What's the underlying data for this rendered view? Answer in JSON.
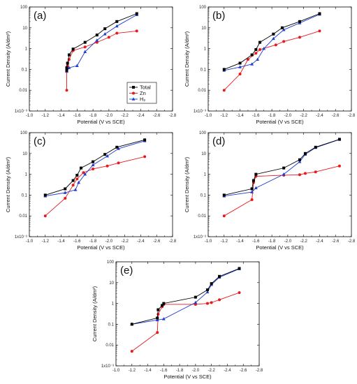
{
  "chart_data": [
    {
      "type": "line",
      "panel_label": "(a)",
      "xlabel": "Potential (V vs SCE)",
      "ylabel": "Current Density (A/dm²)",
      "xlim": [
        -1.0,
        -2.8
      ],
      "ylim": [
        0.001,
        100
      ],
      "y_scale": "log",
      "x_ticks": [
        "-1.0",
        "-1.2",
        "-1.4",
        "-1.6",
        "-1.8",
        "-2.0",
        "-2.2",
        "-2.4",
        "-2.6",
        "-2.8"
      ],
      "y_ticks": [
        "1x10⁻³",
        "0.01",
        "0.1",
        "1",
        "10",
        "100"
      ],
      "legend": {
        "placement": "center-right",
        "entries": [
          "Total",
          "Zn",
          "H₂"
        ]
      },
      "series": [
        {
          "name": "Total",
          "color": "#000000",
          "marker": "square",
          "x": [
            -1.47,
            -1.47,
            -1.48,
            -1.5,
            -1.55,
            -1.7,
            -1.85,
            -1.95,
            -2.1,
            -2.35
          ],
          "y": [
            0.09,
            0.12,
            0.2,
            0.5,
            0.95,
            2.0,
            4.5,
            9.0,
            20,
            48
          ]
        },
        {
          "name": "Zn",
          "color": "#e8191b",
          "marker": "circle",
          "x": [
            -1.47,
            -1.47,
            -1.48,
            -1.5,
            -1.55,
            -1.7,
            -1.85,
            -2.0,
            -2.1,
            -2.35
          ],
          "y": [
            0.01,
            0.08,
            0.15,
            0.3,
            0.8,
            1.2,
            2.0,
            3.5,
            5.5,
            7.0
          ]
        },
        {
          "name": "H₂",
          "color": "#1e3cd0",
          "marker": "triangle",
          "x": [
            -1.47,
            -1.5,
            -1.6,
            -1.7,
            -1.85,
            -1.95,
            -2.1,
            -2.35
          ],
          "y": [
            0.08,
            0.12,
            0.15,
            0.7,
            2.5,
            5.0,
            12,
            42
          ]
        }
      ]
    },
    {
      "type": "line",
      "panel_label": "(b)",
      "xlabel": "Potential (V vs SCE)",
      "ylabel": "Current Density (A/dm²)",
      "xlim": [
        -1.0,
        -2.8
      ],
      "ylim": [
        0.001,
        100
      ],
      "y_scale": "log",
      "x_ticks": [
        "-1.0",
        "-1.2",
        "-1.4",
        "-1.6",
        "-1.8",
        "-2.0",
        "-2.2",
        "-2.4",
        "-2.6",
        "-2.8"
      ],
      "y_ticks": [
        "1x10⁻³",
        "0.01",
        "0.1",
        "1",
        "10",
        "100"
      ],
      "series": [
        {
          "name": "Total",
          "color": "#000000",
          "marker": "square",
          "x": [
            -1.2,
            -1.4,
            -1.55,
            -1.6,
            -1.65,
            -1.82,
            -1.93,
            -2.15,
            -2.4
          ],
          "y": [
            0.1,
            0.2,
            0.5,
            0.9,
            2.0,
            5.0,
            10,
            20,
            48
          ]
        },
        {
          "name": "Zn",
          "color": "#e8191b",
          "marker": "circle",
          "x": [
            -1.2,
            -1.4,
            -1.5,
            -1.6,
            -1.65,
            -1.85,
            -1.95,
            -2.15,
            -2.4
          ],
          "y": [
            0.01,
            0.06,
            0.3,
            0.6,
            0.9,
            1.5,
            2.2,
            3.5,
            7.0
          ]
        },
        {
          "name": "H₂",
          "color": "#1e3cd0",
          "marker": "triangle",
          "x": [
            -1.2,
            -1.4,
            -1.55,
            -1.62,
            -1.7,
            -1.82,
            -1.95,
            -2.15,
            -2.4
          ],
          "y": [
            0.09,
            0.13,
            0.18,
            0.3,
            1.0,
            3.0,
            8.0,
            17,
            44
          ]
        }
      ]
    },
    {
      "type": "line",
      "panel_label": "(c)",
      "xlabel": "Potential (V vs SCE)",
      "ylabel": "Current Density (A/dm²)",
      "xlim": [
        -1.0,
        -2.8
      ],
      "ylim": [
        0.001,
        100
      ],
      "y_scale": "log",
      "x_ticks": [
        "-1.0",
        "-1.2",
        "-1.4",
        "-1.6",
        "-1.8",
        "-2.0",
        "-2.2",
        "-2.4",
        "-2.6",
        "-2.8"
      ],
      "y_ticks": [
        "1x10⁻³",
        "0.01",
        "0.1",
        "1",
        "10",
        "100"
      ],
      "series": [
        {
          "name": "Total",
          "color": "#000000",
          "marker": "square",
          "x": [
            -1.2,
            -1.45,
            -1.55,
            -1.6,
            -1.65,
            -1.8,
            -1.95,
            -2.1,
            -2.45
          ],
          "y": [
            0.1,
            0.2,
            0.5,
            0.9,
            2.0,
            4.0,
            9.0,
            20,
            45
          ]
        },
        {
          "name": "Zn",
          "color": "#e8191b",
          "marker": "circle",
          "x": [
            -1.2,
            -1.45,
            -1.55,
            -1.6,
            -1.68,
            -1.8,
            -1.98,
            -2.12,
            -2.45
          ],
          "y": [
            0.01,
            0.07,
            0.3,
            0.6,
            1.2,
            1.8,
            2.5,
            3.5,
            7.0
          ]
        },
        {
          "name": "H₂",
          "color": "#1e3cd0",
          "marker": "triangle",
          "x": [
            -1.2,
            -1.45,
            -1.58,
            -1.62,
            -1.7,
            -1.8,
            -1.98,
            -2.12,
            -2.45
          ],
          "y": [
            0.09,
            0.13,
            0.18,
            0.4,
            1.0,
            2.8,
            7.5,
            17,
            40
          ]
        }
      ]
    },
    {
      "type": "line",
      "panel_label": "(d)",
      "xlabel": "Potential (V vs SCE)",
      "ylabel": "Current Density (A/dm²)",
      "xlim": [
        -1.0,
        -2.8
      ],
      "ylim": [
        0.001,
        100
      ],
      "y_scale": "log",
      "x_ticks": [
        "-1.0",
        "-1.2",
        "-1.4",
        "-1.6",
        "-1.8",
        "-2.0",
        "-2.2",
        "-2.4",
        "-2.6",
        "-2.8"
      ],
      "y_ticks": [
        "1x10⁻³",
        "0.01",
        "0.1",
        "1",
        "10",
        "100"
      ],
      "series": [
        {
          "name": "Total",
          "color": "#000000",
          "marker": "square",
          "x": [
            -1.2,
            -1.55,
            -1.57,
            -1.6,
            -1.95,
            -2.15,
            -2.22,
            -2.35,
            -2.65
          ],
          "y": [
            0.1,
            0.2,
            0.5,
            1.0,
            2.0,
            5.0,
            10,
            20,
            48
          ]
        },
        {
          "name": "Zn",
          "color": "#e8191b",
          "marker": "circle",
          "x": [
            -1.2,
            -1.55,
            -1.57,
            -1.6,
            -1.95,
            -2.15,
            -2.22,
            -2.35,
            -2.65
          ],
          "y": [
            0.01,
            0.06,
            0.4,
            0.8,
            0.9,
            0.95,
            1.1,
            1.3,
            2.5
          ]
        },
        {
          "name": "H₂",
          "color": "#1e3cd0",
          "marker": "triangle",
          "x": [
            -1.2,
            -1.55,
            -1.6,
            -1.95,
            -2.15,
            -2.22,
            -2.35,
            -2.65
          ],
          "y": [
            0.09,
            0.14,
            0.22,
            1.0,
            4.0,
            9.0,
            19,
            47
          ]
        }
      ]
    },
    {
      "type": "line",
      "panel_label": "(e)",
      "xlabel": "Potential (V vs SCE)",
      "ylabel": "Current Density (A/dm²)",
      "xlim": [
        -1.0,
        -2.8
      ],
      "ylim": [
        0.001,
        100
      ],
      "y_scale": "log",
      "x_ticks": [
        "-1.0",
        "-1.2",
        "-1.4",
        "-1.6",
        "-1.8",
        "-2.0",
        "-2.2",
        "-2.4",
        "-2.6",
        "-2.8"
      ],
      "y_ticks": [
        "1x10⁻³",
        "0.01",
        "0.1",
        "1",
        "10",
        "100"
      ],
      "series": [
        {
          "name": "Total",
          "color": "#000000",
          "marker": "square",
          "x": [
            -1.2,
            -1.52,
            -1.53,
            -1.58,
            -1.6,
            -2.0,
            -2.15,
            -2.2,
            -2.3,
            -2.55
          ],
          "y": [
            0.1,
            0.2,
            0.5,
            0.8,
            1.0,
            2.0,
            4.5,
            9.0,
            20,
            48
          ]
        },
        {
          "name": "Zn",
          "color": "#e8191b",
          "marker": "circle",
          "x": [
            -1.2,
            -1.52,
            -1.53,
            -1.58,
            -1.6,
            -2.0,
            -2.15,
            -2.2,
            -2.3,
            -2.55
          ],
          "y": [
            0.005,
            0.04,
            0.3,
            0.7,
            0.9,
            0.9,
            1.0,
            1.1,
            1.5,
            3.3
          ]
        },
        {
          "name": "H₂",
          "color": "#1e3cd0",
          "marker": "triangle",
          "x": [
            -1.2,
            -1.52,
            -1.6,
            -2.0,
            -2.15,
            -2.2,
            -2.3,
            -2.55
          ],
          "y": [
            0.1,
            0.16,
            0.18,
            1.1,
            3.5,
            8.0,
            18,
            46
          ]
        }
      ]
    }
  ]
}
